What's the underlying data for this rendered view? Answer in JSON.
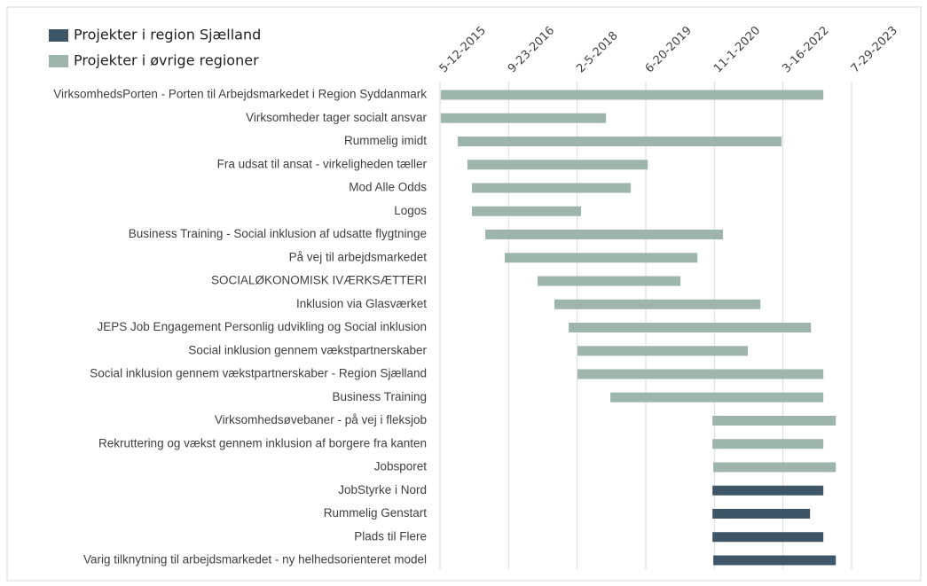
{
  "chart_data": {
    "type": "gantt",
    "categories": [
      "VirksomhedsPorten - Porten til Arbejdsmarkedet i Region Syddanmark",
      "Virksomheder tager socialt ansvar",
      "Rummelig imidt",
      "Fra udsat til ansat - virkeligheden tæller",
      "Mod Alle Odds",
      "Logos",
      "Business Training - Social inklusion af udsatte flygtninge",
      "På vej til arbejdsmarkedet",
      "SOCIALØKONOMISK IVÆRKSÆTTERI",
      "Inklusion via Glasværket",
      "JEPS Job Engagement Personlig udvikling og Social inklusion",
      "Social inklusion gennem vækstpartnerskaber",
      "Social inklusion gennem vækstpartnerskaber - Region Sjælland",
      "Business Training",
      "Virksomhedsøvebaner - på vej i fleksjob",
      "Rekruttering og vækst gennem inklusion af borgere fra kanten",
      "Jobsporet",
      "JobStyrke i Nord",
      "Rummelig Genstart",
      "Plads til Flere",
      "Varig tilknytning til arbejdsmarkedet - ny helhedsorienteret model"
    ],
    "series": [
      {
        "name": "Projekter i region Sjælland",
        "color": "#3d5566",
        "start": [
          null,
          null,
          null,
          null,
          null,
          null,
          null,
          null,
          null,
          null,
          null,
          null,
          null,
          null,
          null,
          null,
          null,
          44122,
          44122,
          44122,
          44128
        ],
        "end": [
          null,
          null,
          null,
          null,
          null,
          null,
          null,
          null,
          null,
          null,
          null,
          null,
          null,
          null,
          null,
          null,
          null,
          44930,
          44833,
          44930,
          45021
        ]
      },
      {
        "name": "Projekter i øvrige regioner",
        "color": "#9db5ab",
        "start": [
          42142,
          42142,
          42265,
          42336,
          42369,
          42369,
          42466,
          42608,
          42847,
          42970,
          43074,
          43139,
          43139,
          43378,
          44122,
          44122,
          44128,
          null,
          null,
          null,
          null
        ],
        "end": [
          44930,
          43346,
          44626,
          43650,
          43527,
          43164,
          44199,
          44012,
          43889,
          44471,
          44840,
          44380,
          44930,
          44930,
          45021,
          44930,
          45021,
          null,
          null,
          null,
          null
        ]
      }
    ],
    "xlim": [
      42136,
      45136
    ],
    "xticks": [
      {
        "value": 42136,
        "label": "5-12-2015"
      },
      {
        "value": 42636,
        "label": "9-23-2016"
      },
      {
        "value": 43136,
        "label": "2-5-2018"
      },
      {
        "value": 43636,
        "label": "6-20-2019"
      },
      {
        "value": 44136,
        "label": "11-1-2020"
      },
      {
        "value": 44636,
        "label": "3-16-2022"
      },
      {
        "value": 45136,
        "label": "7-29-2023"
      }
    ],
    "grid": true,
    "legend": "top-left"
  }
}
